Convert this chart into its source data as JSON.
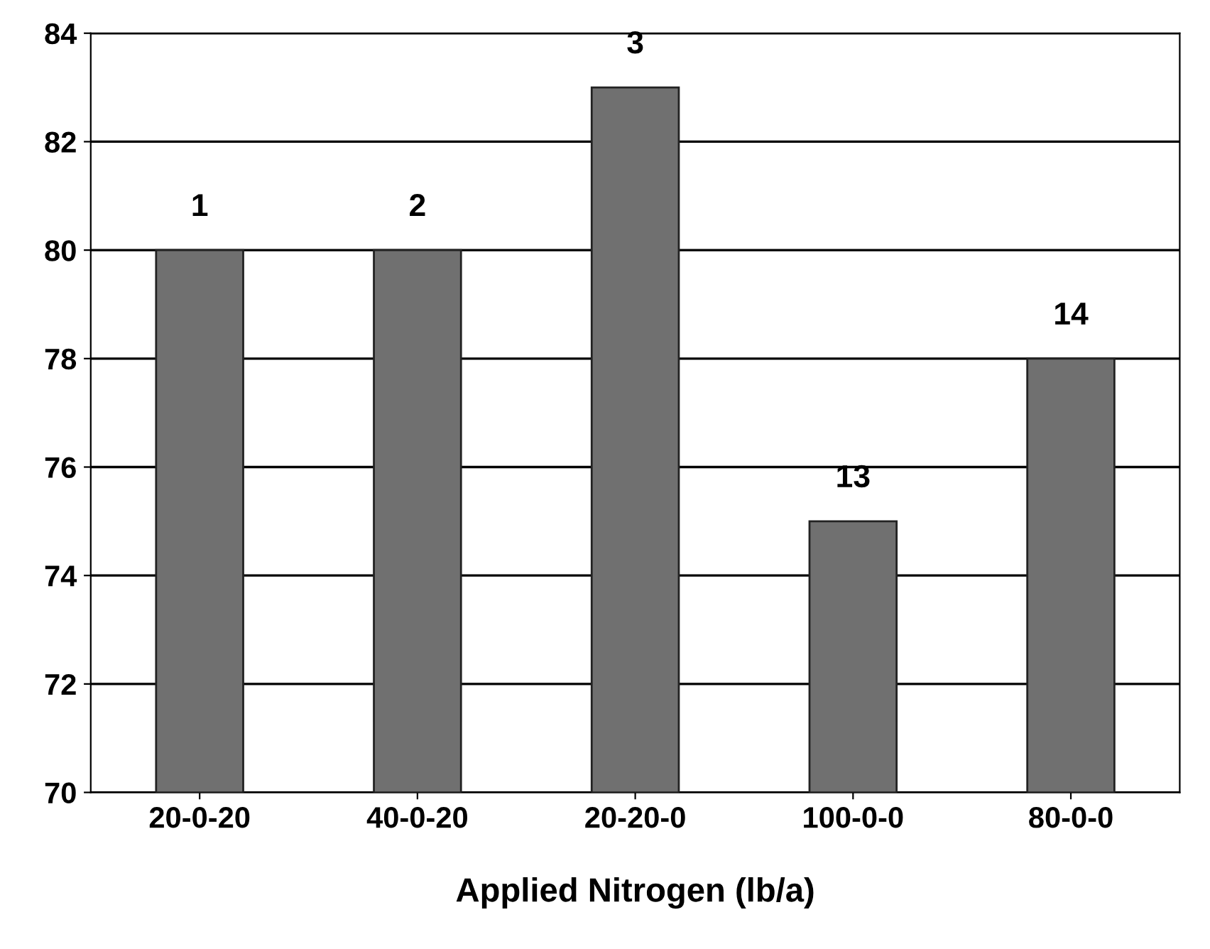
{
  "chart_data": {
    "type": "bar",
    "xlabel": "Applied Nitrogen (lb/a)",
    "categories": [
      "20-0-20",
      "40-0-20",
      "20-20-0",
      "100-0-0",
      "80-0-0"
    ],
    "values": [
      80,
      80,
      83,
      75,
      78
    ],
    "color": "#707070",
    "ylim": [
      70,
      84
    ],
    "yticks": [
      70,
      72,
      74,
      76,
      78,
      80,
      82,
      84
    ],
    "grid": "y",
    "annotations": [
      {
        "text": "1",
        "x": "20-0-20",
        "y": 80
      },
      {
        "text": "2",
        "x": "40-0-20",
        "y": 80
      },
      {
        "text": "3",
        "x": "20-20-0",
        "y": 83
      },
      {
        "text": "13",
        "x": "100-0-0",
        "y": 75
      },
      {
        "text": "14",
        "x": "80-0-0",
        "y": 78
      }
    ]
  }
}
